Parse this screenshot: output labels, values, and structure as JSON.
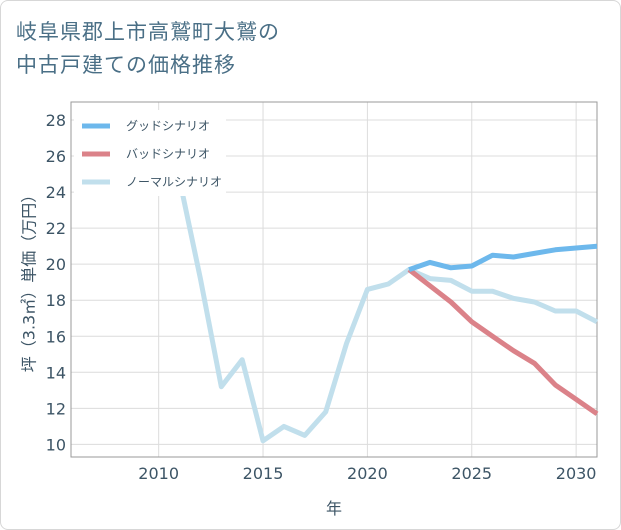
{
  "title_line1": "岐阜県郡上市高鷲町大鷲の",
  "title_line2": "中古戸建ての価格推移",
  "chart_data": {
    "type": "line",
    "xlabel": "年",
    "ylabel": "坪（3.3㎡）単価（万円）",
    "xlim": [
      2005.8,
      2031
    ],
    "ylim": [
      9.3,
      29
    ],
    "x_ticks": [
      2010,
      2015,
      2020,
      2025,
      2030
    ],
    "y_ticks": [
      10,
      12,
      14,
      16,
      18,
      20,
      22,
      24,
      26,
      28
    ],
    "grid": true,
    "legend_position": "top-left",
    "series": [
      {
        "name": "グッドシナリオ",
        "color": "#6db8ec",
        "x": [
          2022,
          2023,
          2024,
          2025,
          2026,
          2027,
          2028,
          2029,
          2030,
          2031
        ],
        "y": [
          19.7,
          20.1,
          19.8,
          19.9,
          20.5,
          20.4,
          20.6,
          20.8,
          20.9,
          21.0
        ]
      },
      {
        "name": "バッドシナリオ",
        "color": "#db8289",
        "x": [
          2022,
          2023,
          2024,
          2025,
          2026,
          2027,
          2028,
          2029,
          2030,
          2031
        ],
        "y": [
          19.7,
          18.8,
          17.9,
          16.8,
          16.0,
          15.2,
          14.5,
          13.3,
          12.5,
          11.7
        ]
      },
      {
        "name": "ノーマルシナリオ",
        "color": "#c1dfec",
        "x": [
          2008,
          2009,
          2010,
          2011,
          2012,
          2013,
          2014,
          2015,
          2016,
          2017,
          2018,
          2019,
          2020,
          2021,
          2022,
          2023,
          2024,
          2025,
          2026,
          2027,
          2028,
          2029,
          2030,
          2031
        ],
        "y": [
          27.0,
          24.8,
          24.7,
          24.7,
          19.2,
          13.2,
          14.7,
          10.2,
          11.0,
          10.5,
          11.8,
          15.6,
          18.6,
          18.9,
          19.7,
          19.2,
          19.1,
          18.5,
          18.5,
          18.1,
          17.9,
          17.4,
          17.4,
          16.8
        ]
      }
    ]
  }
}
